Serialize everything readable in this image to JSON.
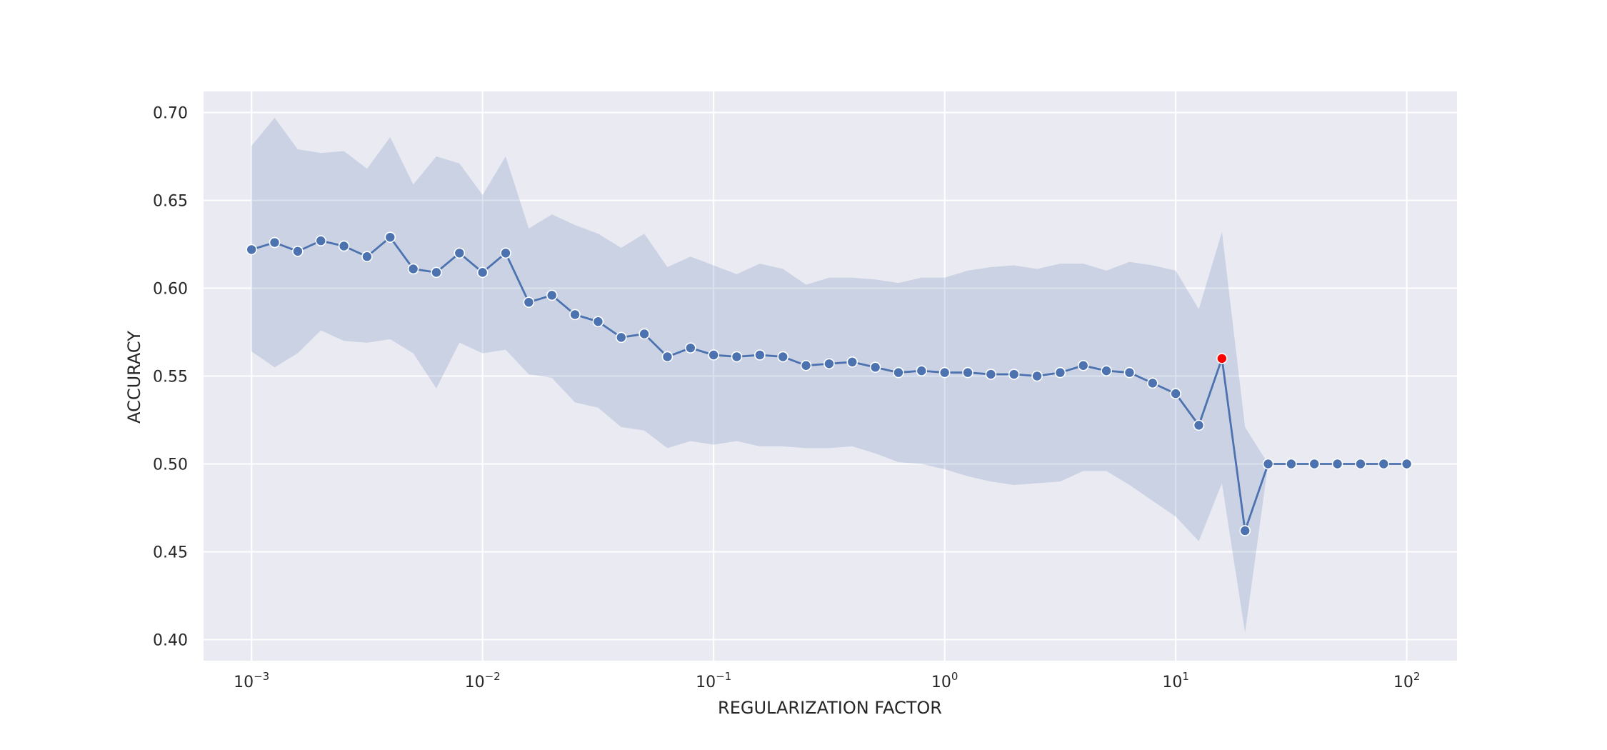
{
  "chart_data": {
    "type": "line",
    "title": "",
    "xlabel": "REGULARIZATION FACTOR",
    "ylabel": "ACCURACY",
    "x_scale": "log",
    "xlim": [
      0.00062,
      165
    ],
    "ylim": [
      0.388,
      0.712
    ],
    "x_ticks": [
      {
        "value": 0.001,
        "base": "10",
        "exp": "−3"
      },
      {
        "value": 0.01,
        "base": "10",
        "exp": "−2"
      },
      {
        "value": 0.1,
        "base": "10",
        "exp": "−1"
      },
      {
        "value": 1,
        "base": "10",
        "exp": "0"
      },
      {
        "value": 10,
        "base": "10",
        "exp": "1"
      },
      {
        "value": 100,
        "base": "10",
        "exp": "2"
      }
    ],
    "y_ticks": [
      {
        "value": 0.4,
        "label": "0.40"
      },
      {
        "value": 0.45,
        "label": "0.45"
      },
      {
        "value": 0.5,
        "label": "0.50"
      },
      {
        "value": 0.55,
        "label": "0.55"
      },
      {
        "value": 0.6,
        "label": "0.60"
      },
      {
        "value": 0.65,
        "label": "0.65"
      },
      {
        "value": 0.7,
        "label": "0.70"
      }
    ],
    "grid": true,
    "background_color": "#eaeaf2",
    "line_color": "#4c72b0",
    "band_color": "#4c72b0",
    "highlight_color": "#ff0000",
    "highlight_index": 42,
    "series": [
      {
        "x": [
          0.001,
          0.0012589,
          0.0015849,
          0.0019953,
          0.0025119,
          0.0031623,
          0.0039811,
          0.0050119,
          0.0063096,
          0.0079433,
          0.01,
          0.012589,
          0.015849,
          0.019953,
          0.025119,
          0.031623,
          0.039811,
          0.050119,
          0.063096,
          0.079433,
          0.1,
          0.12589,
          0.15849,
          0.19953,
          0.25119,
          0.31623,
          0.39811,
          0.50119,
          0.63096,
          0.79433,
          1,
          1.2589,
          1.5849,
          1.9953,
          2.5119,
          3.1623,
          3.9811,
          5.0119,
          6.3096,
          7.9433,
          10,
          12.589,
          15.849,
          19.953,
          25.119,
          31.623,
          39.811,
          50.119,
          63.096,
          79.433,
          100
        ],
        "values": [
          0.622,
          0.626,
          0.621,
          0.627,
          0.624,
          0.618,
          0.629,
          0.611,
          0.609,
          0.62,
          0.609,
          0.62,
          0.592,
          0.596,
          0.585,
          0.581,
          0.572,
          0.574,
          0.561,
          0.566,
          0.562,
          0.561,
          0.562,
          0.561,
          0.556,
          0.557,
          0.558,
          0.555,
          0.552,
          0.553,
          0.552,
          0.552,
          0.551,
          0.551,
          0.55,
          0.552,
          0.556,
          0.553,
          0.552,
          0.546,
          0.54,
          0.522,
          0.56,
          0.462,
          0.5,
          0.5,
          0.5,
          0.5,
          0.5,
          0.5,
          0.5
        ],
        "upper": [
          0.681,
          0.697,
          0.679,
          0.677,
          0.678,
          0.668,
          0.686,
          0.659,
          0.675,
          0.671,
          0.653,
          0.675,
          0.634,
          0.642,
          0.636,
          0.631,
          0.623,
          0.631,
          0.612,
          0.618,
          0.613,
          0.608,
          0.614,
          0.611,
          0.602,
          0.606,
          0.606,
          0.605,
          0.603,
          0.606,
          0.606,
          0.61,
          0.612,
          0.613,
          0.611,
          0.614,
          0.614,
          0.61,
          0.615,
          0.613,
          0.61,
          0.588,
          0.632,
          0.521,
          0.5,
          0.5,
          0.5,
          0.5,
          0.5,
          0.5,
          0.5
        ],
        "lower": [
          0.564,
          0.555,
          0.563,
          0.576,
          0.57,
          0.569,
          0.571,
          0.563,
          0.543,
          0.569,
          0.563,
          0.565,
          0.551,
          0.549,
          0.535,
          0.532,
          0.521,
          0.519,
          0.509,
          0.513,
          0.511,
          0.513,
          0.51,
          0.51,
          0.509,
          0.509,
          0.51,
          0.506,
          0.501,
          0.5,
          0.497,
          0.493,
          0.49,
          0.488,
          0.489,
          0.49,
          0.496,
          0.496,
          0.488,
          0.479,
          0.47,
          0.456,
          0.489,
          0.404,
          0.5,
          0.5,
          0.5,
          0.5,
          0.5,
          0.5,
          0.5
        ]
      }
    ]
  }
}
